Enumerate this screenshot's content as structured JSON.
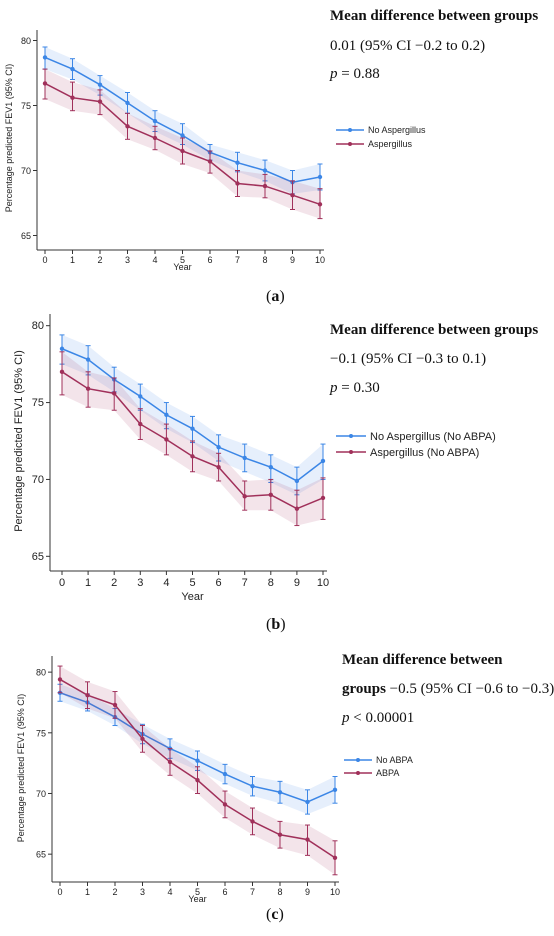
{
  "chart_data": [
    {
      "type": "line",
      "panel": "a",
      "ylabel": "Percentage predicted FEV1  (95% CI)",
      "xlabel": "Year",
      "x": [
        0,
        1,
        2,
        3,
        4,
        5,
        6,
        7,
        8,
        9,
        10
      ],
      "xticks": [
        "0",
        "1",
        "2",
        "3",
        "4",
        "5",
        "6",
        "7",
        "8",
        "9",
        "10"
      ],
      "yticks": [
        "65",
        "70",
        "75",
        "80"
      ],
      "ylim": [
        64.5,
        80.5
      ],
      "legend_position": "right",
      "series": [
        {
          "name": "No Aspergillus",
          "color": "#3b86e6",
          "values": [
            78.7,
            77.8,
            76.6,
            75.2,
            73.8,
            72.7,
            71.4,
            70.6,
            70.0,
            69.1,
            69.5
          ],
          "lower": [
            77.8,
            77.0,
            75.8,
            74.4,
            73.0,
            72.0,
            70.8,
            69.9,
            69.2,
            68.2,
            68.5
          ],
          "upper": [
            79.5,
            78.6,
            77.3,
            76.0,
            74.6,
            73.6,
            72.0,
            71.4,
            70.8,
            70.0,
            70.5
          ]
        },
        {
          "name": "Aspergillus",
          "color": "#a0305a",
          "values": [
            76.7,
            75.6,
            75.3,
            73.4,
            72.5,
            71.5,
            70.7,
            69.0,
            68.8,
            68.1,
            67.4
          ],
          "lower": [
            75.5,
            74.6,
            74.3,
            72.4,
            71.6,
            70.5,
            69.8,
            68.0,
            67.9,
            67.0,
            66.3
          ],
          "upper": [
            77.8,
            76.8,
            76.2,
            74.4,
            73.4,
            72.5,
            71.5,
            70.0,
            69.7,
            69.2,
            68.6
          ]
        }
      ],
      "notes": {
        "heading": "Mean difference between groups",
        "line1": "0.01 (95% CI −0.2 to 0.2)",
        "p_sym": "p",
        "p_text": " = 0.88"
      },
      "caption_letter": "a"
    },
    {
      "type": "line",
      "panel": "b",
      "ylabel": "Percentage predicted FEV1  (95% CI)",
      "xlabel": "Year",
      "x": [
        0,
        1,
        2,
        3,
        4,
        5,
        6,
        7,
        8,
        9,
        10
      ],
      "xticks": [
        "0",
        "1",
        "2",
        "3",
        "4",
        "5",
        "6",
        "7",
        "8",
        "9",
        "10"
      ],
      "yticks": [
        "65",
        "70",
        "75",
        "80"
      ],
      "ylim": [
        64.5,
        80.5
      ],
      "legend_position": "right",
      "series": [
        {
          "name": "No Aspergillus (No ABPA)",
          "color": "#3b86e6",
          "values": [
            78.5,
            77.8,
            76.5,
            75.4,
            74.2,
            73.3,
            72.1,
            71.4,
            70.8,
            69.9,
            71.2
          ],
          "lower": [
            77.5,
            76.8,
            75.7,
            74.5,
            73.3,
            72.4,
            71.2,
            70.5,
            69.8,
            69.0,
            70.0
          ],
          "upper": [
            79.4,
            78.7,
            77.3,
            76.2,
            75.0,
            74.1,
            72.9,
            72.3,
            71.6,
            70.8,
            72.3
          ]
        },
        {
          "name": "Aspergillus (No ABPA)",
          "color": "#a0305a",
          "values": [
            77.0,
            75.9,
            75.6,
            73.6,
            72.6,
            71.5,
            70.8,
            68.9,
            69.0,
            68.1,
            68.8
          ],
          "lower": [
            75.5,
            74.7,
            74.5,
            72.6,
            71.6,
            70.5,
            69.9,
            68.0,
            68.0,
            67.0,
            67.4
          ],
          "upper": [
            78.3,
            77.0,
            76.6,
            74.6,
            73.6,
            72.5,
            71.7,
            69.9,
            70.0,
            69.3,
            70.1
          ]
        }
      ],
      "notes": {
        "heading": "Mean difference between groups",
        "line1": "−0.1 (95% CI −0.3 to 0.1)",
        "p_sym": "p",
        "p_text": " = 0.30"
      },
      "caption_letter": "b"
    },
    {
      "type": "line",
      "panel": "c",
      "ylabel": "Percentage predicted FEV1 (95% CI)",
      "xlabel": "Year",
      "x": [
        0,
        1,
        2,
        3,
        4,
        5,
        6,
        7,
        8,
        9,
        10
      ],
      "xticks": [
        "0",
        "1",
        "2",
        "3",
        "4",
        "5",
        "6",
        "7",
        "8",
        "9",
        "10"
      ],
      "yticks": [
        "65",
        "70",
        "75",
        "80"
      ],
      "ylim": [
        63.2,
        81.0
      ],
      "legend_position": "right",
      "series": [
        {
          "name": "No ABPA",
          "color": "#3b86e6",
          "values": [
            78.3,
            77.5,
            76.3,
            74.9,
            73.7,
            72.7,
            71.6,
            70.6,
            70.1,
            69.3,
            70.3
          ],
          "lower": [
            77.6,
            76.8,
            75.6,
            74.1,
            72.9,
            71.9,
            70.8,
            69.8,
            69.2,
            68.3,
            69.2
          ],
          "upper": [
            79.0,
            78.2,
            77.0,
            75.7,
            74.5,
            73.5,
            72.4,
            71.4,
            71.0,
            70.3,
            71.4
          ]
        },
        {
          "name": "ABPA",
          "color": "#a0305a",
          "values": [
            79.4,
            78.1,
            77.3,
            74.5,
            72.6,
            71.1,
            69.1,
            67.7,
            66.6,
            66.2,
            64.7
          ],
          "lower": [
            78.3,
            77.0,
            76.2,
            73.4,
            71.5,
            70.0,
            68.0,
            66.6,
            65.5,
            64.9,
            63.3
          ],
          "upper": [
            80.5,
            79.2,
            78.4,
            75.6,
            73.7,
            72.2,
            70.2,
            68.8,
            67.7,
            67.4,
            66.1
          ]
        }
      ],
      "notes": {
        "heading": "Mean difference between",
        "line1_bold": "groups",
        "line1": " −0.5 (95% CI −0.6 to −0.3)",
        "p_sym": "p",
        "p_text": " < 0.00001"
      },
      "caption_letter": "c"
    }
  ]
}
